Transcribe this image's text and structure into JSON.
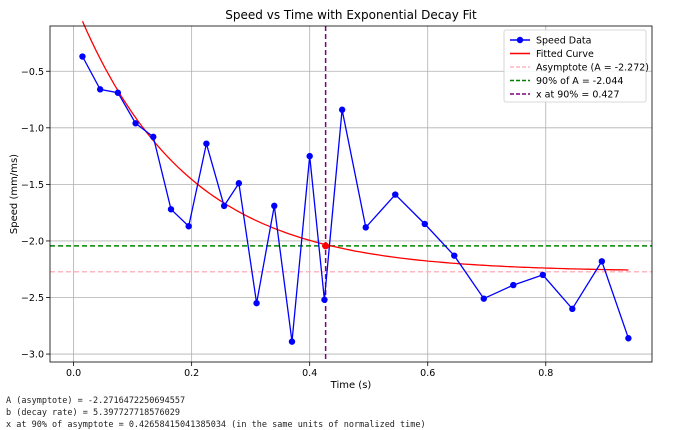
{
  "chart_data": {
    "type": "line",
    "title": "Speed vs Time with Exponential Decay Fit",
    "xlabel": "Time (s)",
    "ylabel": "Speed (mm/ms)",
    "xlim": [
      -0.04,
      0.98
    ],
    "ylim": [
      -3.07,
      -0.1
    ],
    "xticks": [
      0.0,
      0.2,
      0.4,
      0.6,
      0.8
    ],
    "xtick_labels": [
      "0.0",
      "0.2",
      "0.4",
      "0.6",
      "0.8"
    ],
    "yticks": [
      -0.5,
      -1.0,
      -1.5,
      -2.0,
      -2.5,
      -3.0
    ],
    "ytick_labels": [
      "−0.5",
      "−1.0",
      "−1.5",
      "−2.0",
      "−2.5",
      "−3.0"
    ],
    "grid": true,
    "legend_position": "top-right",
    "series": [
      {
        "name": "Speed Data",
        "color": "#0000ff",
        "marker": "circle",
        "x": [
          0.015,
          0.045,
          0.075,
          0.105,
          0.135,
          0.165,
          0.195,
          0.225,
          0.255,
          0.28,
          0.31,
          0.34,
          0.37,
          0.4,
          0.425,
          0.455,
          0.495,
          0.545,
          0.595,
          0.645,
          0.695,
          0.745,
          0.795,
          0.845,
          0.895,
          0.94
        ],
        "y": [
          -0.37,
          -0.66,
          -0.69,
          -0.96,
          -1.08,
          -1.72,
          -1.87,
          -1.14,
          -1.69,
          -1.49,
          -2.55,
          -1.69,
          -2.89,
          -1.25,
          -2.52,
          -0.84,
          -1.88,
          -1.59,
          -1.85,
          -2.13,
          -2.51,
          -2.39,
          -2.3,
          -2.6,
          -2.18,
          -2.86
        ]
      },
      {
        "name": "Fitted Curve",
        "color": "#ff0000",
        "params": {
          "A": -2.2716472250694557,
          "b": 5.397727718576029,
          "C": 2.4
        },
        "x_range": [
          0.015,
          0.94
        ]
      }
    ],
    "reference_lines": [
      {
        "name": "Asymptote (A = -2.272)",
        "orientation": "horizontal",
        "value": -2.272,
        "color": "#ffb6c1",
        "style": "dashed"
      },
      {
        "name": "90% of A = -2.044",
        "orientation": "horizontal",
        "value": -2.044,
        "color": "#008000",
        "style": "dashed"
      },
      {
        "name": "x at 90% = 0.427",
        "orientation": "vertical",
        "value": 0.427,
        "color": "#800080",
        "style": "dashed"
      }
    ],
    "highlight_point": {
      "x": 0.427,
      "y": -2.044,
      "color": "#ff0000"
    },
    "legend": [
      "Speed Data",
      "Fitted Curve",
      "Asymptote (A = -2.272)",
      "90% of A = -2.044",
      "x at 90% = 0.427"
    ]
  },
  "output_lines": [
    "A (asymptote) = -2.2716472250694557",
    "b (decay rate) = 5.397727718576029",
    "x at 90% of asymptote = 0.42658415041385034 (in the same units of normalized time)"
  ]
}
